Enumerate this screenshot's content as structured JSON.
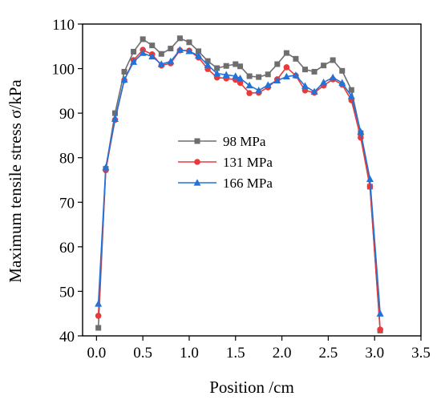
{
  "chart_data": {
    "type": "line",
    "xlabel": "Position /cm",
    "ylabel": "Maximum tensile stress σ/kPa",
    "xlim": [
      -0.15,
      3.5
    ],
    "ylim": [
      40,
      110
    ],
    "xticks": [
      "0.0",
      "0.5",
      "1.0",
      "1.5",
      "2.0",
      "2.5",
      "3.0",
      "3.5"
    ],
    "yticks": [
      "40",
      "50",
      "60",
      "70",
      "80",
      "90",
      "100",
      "110"
    ],
    "grid": false,
    "legend_position": "center-left",
    "series": [
      {
        "name": "98 MPa",
        "color": "#6e6e6e",
        "marker": "square",
        "x": [
          0.02,
          0.1,
          0.2,
          0.3,
          0.4,
          0.5,
          0.6,
          0.7,
          0.8,
          0.9,
          1.0,
          1.1,
          1.2,
          1.3,
          1.4,
          1.5,
          1.55,
          1.65,
          1.75,
          1.85,
          1.95,
          2.05,
          2.15,
          2.25,
          2.35,
          2.45,
          2.55,
          2.65,
          2.75,
          2.85,
          2.95,
          3.06
        ],
        "y": [
          41.8,
          77.5,
          90.0,
          99.3,
          103.8,
          106.6,
          105.2,
          103.3,
          104.5,
          106.8,
          105.9,
          103.9,
          101.7,
          100.1,
          100.6,
          101.0,
          100.5,
          98.3,
          98.1,
          98.7,
          101.0,
          103.5,
          102.2,
          99.8,
          99.3,
          100.7,
          101.9,
          99.5,
          95.2,
          85.5,
          73.5,
          41.2
        ]
      },
      {
        "name": "131 MPa",
        "color": "#e83a3a",
        "marker": "circle",
        "x": [
          0.02,
          0.1,
          0.2,
          0.3,
          0.4,
          0.5,
          0.6,
          0.7,
          0.8,
          0.9,
          1.0,
          1.1,
          1.2,
          1.3,
          1.4,
          1.5,
          1.55,
          1.65,
          1.75,
          1.85,
          1.95,
          2.05,
          2.15,
          2.25,
          2.35,
          2.45,
          2.55,
          2.65,
          2.75,
          2.85,
          2.95,
          3.06
        ],
        "y": [
          44.5,
          77.2,
          88.5,
          97.4,
          101.9,
          104.2,
          103.2,
          100.7,
          101.2,
          104.1,
          104.0,
          102.5,
          99.9,
          98.0,
          97.8,
          97.5,
          96.8,
          94.5,
          94.6,
          95.8,
          97.6,
          100.3,
          98.4,
          95.1,
          94.6,
          96.2,
          97.6,
          96.4,
          92.9,
          84.5,
          73.5,
          41.4
        ]
      },
      {
        "name": "166 MPa",
        "color": "#2173d8",
        "marker": "triangle",
        "x": [
          0.02,
          0.1,
          0.2,
          0.3,
          0.4,
          0.5,
          0.6,
          0.7,
          0.8,
          0.9,
          1.0,
          1.1,
          1.2,
          1.3,
          1.4,
          1.5,
          1.55,
          1.65,
          1.75,
          1.85,
          1.95,
          2.05,
          2.15,
          2.25,
          2.35,
          2.45,
          2.55,
          2.65,
          2.75,
          2.85,
          2.95,
          3.06
        ],
        "y": [
          47.2,
          77.8,
          88.7,
          97.5,
          101.5,
          103.5,
          102.7,
          101.0,
          101.6,
          104.2,
          103.9,
          102.9,
          100.8,
          98.9,
          98.6,
          98.3,
          97.8,
          96.2,
          95.1,
          96.3,
          97.3,
          98.2,
          98.5,
          96.1,
          94.8,
          96.9,
          98.0,
          96.8,
          93.8,
          85.8,
          75.2,
          45.0
        ]
      }
    ]
  }
}
